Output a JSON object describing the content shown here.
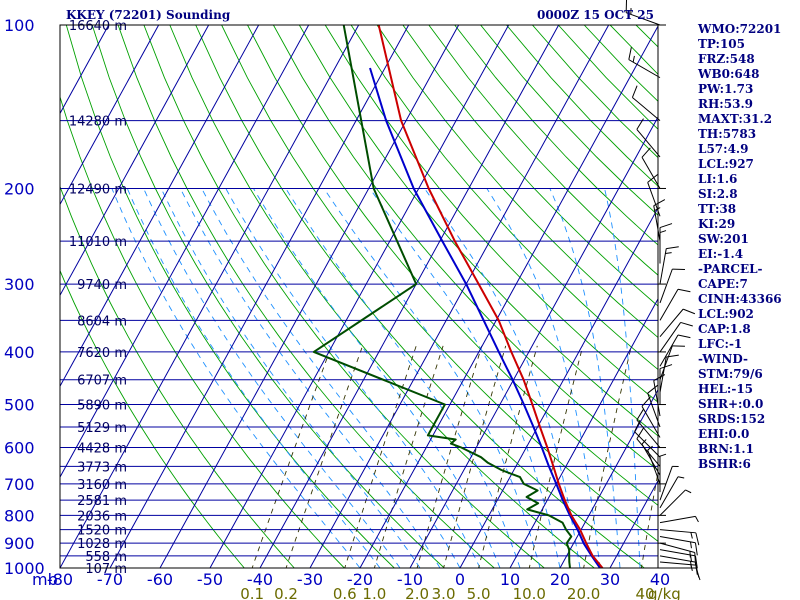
{
  "header": {
    "station_title": "KKEY (72201) Sounding",
    "valid_time": "0000Z 15 OCT 25"
  },
  "colors": {
    "frame": "#000000",
    "isobar": "#0000a0",
    "isotherm": "#0000a0",
    "dry_adiabat": "#00a000",
    "moist_adiabat": "#1e90ff",
    "mixing_ratio": "#333300",
    "temperature": "#cc0000",
    "dewpoint": "#004d00",
    "parcel": "#0000cc",
    "wind_barb": "#000000"
  },
  "indices": [
    "WMO:72201",
    "TP:105",
    "FRZ:548",
    "WB0:648",
    "PW:1.73",
    "RH:53.9",
    "MAXT:31.2",
    "TH:5783",
    "L57:4.9",
    "LCL:927",
    "LI:1.6",
    "SI:2.8",
    "TT:38",
    "KI:29",
    "SW:201",
    "EI:-1.4",
    "-PARCEL-",
    "CAPE:7",
    "CINH:43366",
    "LCL:902",
    "CAP:1.8",
    "LFC:-1",
    "-WIND-",
    "STM:79/6",
    "HEL:-15",
    "SHR+:0.0",
    "SRDS:152",
    "EHI:0.0",
    "BRN:1.1",
    "BSHR:6"
  ],
  "chart_data": {
    "type": "skew-t",
    "title": "KKEY (72201) Sounding",
    "xlabel": "mb",
    "x_unit_label": "g/kg",
    "pressure_levels": [
      100,
      200,
      300,
      400,
      500,
      600,
      700,
      800,
      900,
      1000
    ],
    "temperature_ticks": [
      -80,
      -70,
      -60,
      -50,
      -40,
      -30,
      -20,
      -10,
      0,
      10,
      20,
      30,
      40
    ],
    "temperature_tick_labels": [
      "-80",
      "-70",
      "-60",
      "-50",
      "-40",
      "-30",
      "-20",
      "-10",
      "0",
      "10",
      "20",
      "30",
      "40"
    ],
    "mixing_ratio_labels": [
      "0.1",
      "0.2",
      "0.6",
      "1.0",
      "2.0",
      "3.0",
      "5.0",
      "10.0",
      "20.0",
      "40"
    ],
    "mixing_ratio_values": [
      0.1,
      0.2,
      0.6,
      1.0,
      2.0,
      3.0,
      5.0,
      10.0,
      20.0,
      40.0
    ],
    "height_labels": [
      {
        "p": 100,
        "text": "16640 m"
      },
      {
        "p": 150,
        "text": "14280 m"
      },
      {
        "p": 200,
        "text": "12490 m"
      },
      {
        "p": 250,
        "text": "11010 m"
      },
      {
        "p": 300,
        "text": "9740 m"
      },
      {
        "p": 350,
        "text": "8604 m"
      },
      {
        "p": 400,
        "text": "7620 m"
      },
      {
        "p": 450,
        "text": "6707 m"
      },
      {
        "p": 500,
        "text": "5890 m"
      },
      {
        "p": 550,
        "text": "5129 m"
      },
      {
        "p": 600,
        "text": "4428 m"
      },
      {
        "p": 650,
        "text": "3773 m"
      },
      {
        "p": 700,
        "text": "3160 m"
      },
      {
        "p": 750,
        "text": "2581 m"
      },
      {
        "p": 800,
        "text": "2036 m"
      },
      {
        "p": 850,
        "text": "1520 m"
      },
      {
        "p": 900,
        "text": "1028 m"
      },
      {
        "p": 950,
        "text": "558 m"
      },
      {
        "p": 1000,
        "text": "107 m"
      }
    ],
    "series": [
      {
        "name": "Temperature",
        "points": [
          [
            1000,
            28.5
          ],
          [
            950,
            25.2
          ],
          [
            900,
            22.5
          ],
          [
            850,
            19.8
          ],
          [
            800,
            16.5
          ],
          [
            750,
            13.5
          ],
          [
            700,
            10.5
          ],
          [
            650,
            7.5
          ],
          [
            600,
            4.2
          ],
          [
            550,
            0.5
          ],
          [
            500,
            -3.5
          ],
          [
            450,
            -8.0
          ],
          [
            400,
            -13.5
          ],
          [
            350,
            -19.5
          ],
          [
            300,
            -27.5
          ],
          [
            250,
            -37.0
          ],
          [
            200,
            -48.0
          ],
          [
            150,
            -61.0
          ],
          [
            100,
            -76.0
          ]
        ]
      },
      {
        "name": "Dewpoint",
        "points": [
          [
            1000,
            22.0
          ],
          [
            975,
            21.2
          ],
          [
            950,
            20.5
          ],
          [
            925,
            19.8
          ],
          [
            900,
            18.6
          ],
          [
            875,
            18.8
          ],
          [
            850,
            17.0
          ],
          [
            825,
            15.5
          ],
          [
            800,
            12.0
          ],
          [
            780,
            7.0
          ],
          [
            760,
            8.5
          ],
          [
            740,
            5.5
          ],
          [
            720,
            7.0
          ],
          [
            700,
            3.5
          ],
          [
            680,
            2.0
          ],
          [
            660,
            -2.5
          ],
          [
            640,
            -6.0
          ],
          [
            625,
            -8.0
          ],
          [
            610,
            -11.0
          ],
          [
            600,
            -13.0
          ],
          [
            590,
            -15.5
          ],
          [
            580,
            -15.0
          ],
          [
            570,
            -21.0
          ],
          [
            510,
            -21.0
          ],
          [
            500,
            -21.0
          ],
          [
            400,
            -53.0
          ],
          [
            300,
            -40.0
          ],
          [
            200,
            -59.0
          ],
          [
            100,
            -83.0
          ]
        ]
      },
      {
        "name": "Parcel",
        "points": [
          [
            1000,
            28.0
          ],
          [
            950,
            25.0
          ],
          [
            902,
            22.1
          ],
          [
            850,
            19.3
          ],
          [
            800,
            16.2
          ],
          [
            750,
            13.1
          ],
          [
            700,
            10.0
          ],
          [
            650,
            6.6
          ],
          [
            600,
            3.1
          ],
          [
            550,
            -0.8
          ],
          [
            500,
            -5.2
          ],
          [
            450,
            -10.2
          ],
          [
            400,
            -16.0
          ],
          [
            350,
            -22.5
          ],
          [
            300,
            -30.0
          ],
          [
            250,
            -39.5
          ],
          [
            200,
            -51.0
          ],
          [
            150,
            -64.0
          ],
          [
            120,
            -73.0
          ]
        ]
      }
    ],
    "wind_barbs": [
      {
        "p": 1000,
        "dir": 90,
        "spd": 10
      },
      {
        "p": 975,
        "dir": 95,
        "spd": 15
      },
      {
        "p": 950,
        "dir": 100,
        "spd": 15
      },
      {
        "p": 925,
        "dir": 100,
        "spd": 15
      },
      {
        "p": 900,
        "dir": 105,
        "spd": 15
      },
      {
        "p": 875,
        "dir": 100,
        "spd": 15
      },
      {
        "p": 850,
        "dir": 95,
        "spd": 15
      },
      {
        "p": 825,
        "dir": 80,
        "spd": 5
      },
      {
        "p": 800,
        "dir": 45,
        "spd": 5
      },
      {
        "p": 775,
        "dir": 30,
        "spd": 5
      },
      {
        "p": 750,
        "dir": 20,
        "spd": 5
      },
      {
        "p": 725,
        "dir": 0,
        "spd": 5
      },
      {
        "p": 700,
        "dir": 340,
        "spd": 5
      },
      {
        "p": 675,
        "dir": 330,
        "spd": 5
      },
      {
        "p": 650,
        "dir": 320,
        "spd": 10
      },
      {
        "p": 625,
        "dir": 315,
        "spd": 10
      },
      {
        "p": 600,
        "dir": 320,
        "spd": 10
      },
      {
        "p": 575,
        "dir": 330,
        "spd": 10
      },
      {
        "p": 550,
        "dir": 340,
        "spd": 10
      },
      {
        "p": 525,
        "dir": 350,
        "spd": 10
      },
      {
        "p": 500,
        "dir": 0,
        "spd": 10
      },
      {
        "p": 475,
        "dir": 10,
        "spd": 10
      },
      {
        "p": 450,
        "dir": 20,
        "spd": 10
      },
      {
        "p": 425,
        "dir": 30,
        "spd": 10
      },
      {
        "p": 400,
        "dir": 35,
        "spd": 10
      },
      {
        "p": 375,
        "dir": 40,
        "spd": 10
      },
      {
        "p": 350,
        "dir": 30,
        "spd": 10
      },
      {
        "p": 325,
        "dir": 20,
        "spd": 10
      },
      {
        "p": 300,
        "dir": 10,
        "spd": 15
      },
      {
        "p": 275,
        "dir": 0,
        "spd": 15
      },
      {
        "p": 250,
        "dir": 350,
        "spd": 15
      },
      {
        "p": 225,
        "dir": 340,
        "spd": 10
      },
      {
        "p": 200,
        "dir": 330,
        "spd": 10
      },
      {
        "p": 175,
        "dir": 320,
        "spd": 10
      },
      {
        "p": 150,
        "dir": 310,
        "spd": 10
      },
      {
        "p": 125,
        "dir": 300,
        "spd": 15
      },
      {
        "p": 100,
        "dir": 290,
        "spd": 15
      }
    ]
  }
}
